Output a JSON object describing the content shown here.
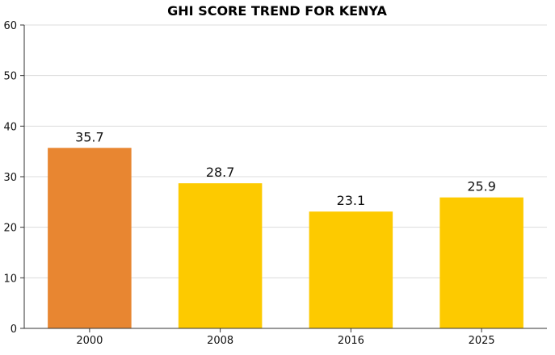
{
  "chart_data": {
    "type": "bar",
    "title": "GHI SCORE TREND FOR KENYA",
    "xlabel": "",
    "ylabel": "",
    "categories": [
      "2000",
      "2008",
      "2016",
      "2025"
    ],
    "values": [
      35.7,
      28.7,
      23.1,
      25.9
    ],
    "bar_colors": [
      "#E88631",
      "#FDCA00",
      "#FDCA00",
      "#FDCA00"
    ],
    "ylim": [
      0,
      60
    ],
    "yticks": [
      0,
      10,
      20,
      30,
      40,
      50,
      60
    ],
    "grid": true,
    "legend": "none"
  }
}
